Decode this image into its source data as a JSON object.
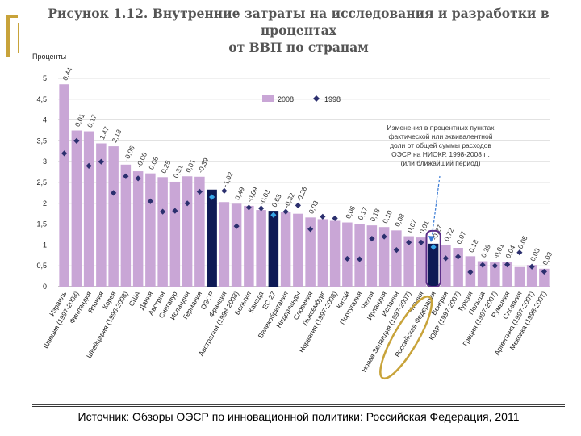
{
  "title": {
    "line1": "Рисунок 1.12. Внутренние затраты на исследования и разработки в процентах",
    "line2": "от ВВП по странам"
  },
  "source": "Источник: Обзоры ОЭСР по инновационной политики: Российская Федерация, 2011",
  "colors": {
    "bar": "#c9a6d6",
    "bar_highlight": "#0e1a55",
    "diamond": "#2b2f6e",
    "diamond_highlight": "#38a6e8",
    "highlight_ring": "#5b2e88",
    "accent": "#c8a33a"
  },
  "chart_data": {
    "type": "bar",
    "ylabel": "Проценты",
    "ylim": [
      0,
      5
    ],
    "yticks": [
      "0",
      "0,5",
      "1",
      "1,5",
      "2",
      "2,5",
      "3",
      "3,5",
      "4",
      "4,5",
      "5"
    ],
    "legend": {
      "placement": "top-center",
      "items": [
        "2008",
        "1998"
      ]
    },
    "annotation": "Изменения в процентных пунктах фактической или эквивалентной доли от общей суммы расходов ОЭСР на НИОКР, 1998-2008 гг. (или ближайший период)",
    "highlight_category": "Российская Федерация",
    "categories": [
      "Израиль",
      "Швеция (1997-2008)",
      "Финляндия",
      "Япония",
      "Корея",
      "Швейцария (1996-2008)",
      "США",
      "Дания",
      "Австрия",
      "Сингапур",
      "Исландия",
      "Германия",
      "ОЭСР",
      "Франция",
      "Австралия (1998-2008)",
      "Бельгия",
      "Канада",
      "ЕС-27",
      "Великобритания",
      "Нидерланды",
      "Словения",
      "Люксембург",
      "Норвегия (1997-2008)",
      "Китай",
      "Португалия",
      "Чехия",
      "Ирландия",
      "Испания",
      "Новая Зеландия (1997-2007)",
      "Италия",
      "Российская Федерация",
      "Венгрия",
      "ЮАР (1997-2007)",
      "Турция",
      "Польша",
      "Греция (1997-2007)",
      "Румыния",
      "Словакия",
      "Аргентина (1997-2007)",
      "Мексика (1998-2007)"
    ],
    "series": [
      {
        "name": "2008",
        "values": [
          4.86,
          3.75,
          3.73,
          3.44,
          3.37,
          2.93,
          2.77,
          2.72,
          2.63,
          2.52,
          2.65,
          2.64,
          2.33,
          2.03,
          1.99,
          1.94,
          1.84,
          1.82,
          1.79,
          1.75,
          1.66,
          1.62,
          1.58,
          1.54,
          1.51,
          1.47,
          1.43,
          1.35,
          1.21,
          1.18,
          1.03,
          1.0,
          0.93,
          0.73,
          0.61,
          0.58,
          0.59,
          0.47,
          0.52,
          0.43
        ]
      },
      {
        "name": "1998",
        "values": [
          3.2,
          3.5,
          2.9,
          3.0,
          2.25,
          2.65,
          2.6,
          2.05,
          1.8,
          1.82,
          2.0,
          2.28,
          2.15,
          2.3,
          1.45,
          1.9,
          1.88,
          1.72,
          1.8,
          1.95,
          1.38,
          1.68,
          1.64,
          0.67,
          0.66,
          1.15,
          1.2,
          0.88,
          1.06,
          1.06,
          0.95,
          0.68,
          0.72,
          0.35,
          0.52,
          0.5,
          0.53,
          0.82,
          0.48,
          0.36
        ]
      }
    ],
    "bar_labels": [
      "0,44",
      "0,01",
      "0,17",
      "1,47",
      "2,18",
      "-0,06",
      "-0,06",
      "0,06",
      "0,25",
      "0,31",
      "0,01",
      "-0,39",
      "",
      "-1,02",
      "0,49",
      "-0,09",
      "-0,03",
      "0,63",
      "-0,32",
      "-0,26",
      "0,03",
      "",
      "",
      "0,06",
      "0,17",
      "0,18",
      "0,10",
      "0,08",
      "0,67",
      "0,01",
      "-0,27",
      "0,72",
      "0,07",
      "0,18",
      "0,39",
      "-0,01",
      "0,04",
      "0,05",
      "0,03",
      "0,03"
    ]
  }
}
